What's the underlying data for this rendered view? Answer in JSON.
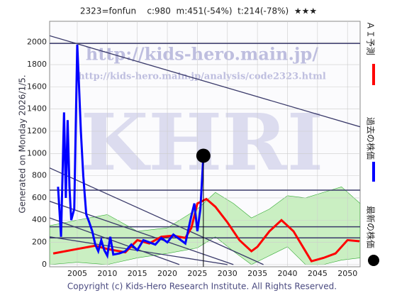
{
  "chart_data": {
    "type": "line",
    "title": "2323=fonfun    c:980  m:451(-54%)  t:214(-78%)  ★★★",
    "ylabel": "Generated on Monday 2026/1/5.",
    "watermarks": [
      "http://kids-hero.main.jp/",
      "http://kids-hero.main.jp/analysis/code2323.html",
      "KHRI"
    ],
    "footer": "Copyright (c) Kids-Hero Research Institute. All Rights Reserved.",
    "xlim": [
      2000.4,
      2052.1
    ],
    "ylim": [
      -20,
      2190
    ],
    "xticks": [
      2005,
      2010,
      2015,
      2020,
      2025,
      2030,
      2035,
      2040,
      2045,
      2050
    ],
    "yticks": [
      0,
      200,
      400,
      600,
      800,
      1000,
      1200,
      1400,
      1600,
      1800,
      2000
    ],
    "grid": true,
    "band": {
      "color": "#8fe07a",
      "x": [
        2000.4,
        2005,
        2010,
        2015,
        2020,
        2025,
        2028,
        2031,
        2034,
        2037,
        2040,
        2043,
        2046,
        2049,
        2052.1
      ],
      "lower": [
        0,
        20,
        0,
        60,
        100,
        150,
        250,
        120,
        0,
        80,
        160,
        0,
        0,
        40,
        60
      ],
      "upper": [
        350,
        400,
        450,
        300,
        330,
        500,
        650,
        550,
        420,
        500,
        620,
        600,
        650,
        700,
        550
      ]
    },
    "levels": [
      1990,
      670,
      340,
      240
    ],
    "trend_lines": [
      [
        2000.4,
        2060,
        2052.1,
        1240
      ],
      [
        2000.4,
        870,
        2036,
        0
      ],
      [
        2000.4,
        570,
        2031,
        0
      ],
      [
        2000.4,
        420,
        2022,
        0
      ],
      [
        2000.4,
        250,
        2030,
        0
      ]
    ],
    "series": [
      {
        "name": "ＡＩ予測",
        "color": "#ff0000",
        "x": [
          2001,
          2005,
          2008,
          2010,
          2013,
          2015,
          2017,
          2019,
          2021,
          2023,
          2024,
          2025,
          2026.5,
          2028,
          2030,
          2032,
          2034,
          2035,
          2037,
          2039,
          2041,
          2043,
          2044,
          2046,
          2048,
          2050,
          2052
        ],
        "values": [
          100,
          140,
          170,
          140,
          110,
          220,
          190,
          250,
          260,
          240,
          330,
          550,
          590,
          520,
          380,
          220,
          120,
          160,
          300,
          400,
          300,
          120,
          30,
          60,
          100,
          220,
          210
        ]
      },
      {
        "name": "過去の株価",
        "color": "#0000ff",
        "x": [
          2001.8,
          2002.3,
          2002.8,
          2003.1,
          2003.4,
          2003.7,
          2004,
          2004.5,
          2005,
          2005.3,
          2005.6,
          2006,
          2006.5,
          2007,
          2007.5,
          2008,
          2008.5,
          2009,
          2009.5,
          2010,
          2010.5,
          2011,
          2012,
          2013,
          2014,
          2015,
          2016,
          2017,
          2018,
          2019,
          2020,
          2021,
          2022,
          2023,
          2024,
          2024.5,
          2025,
          2025.5,
          2026
        ],
        "values": [
          700,
          250,
          1370,
          600,
          1300,
          700,
          400,
          500,
          1980,
          1600,
          1200,
          800,
          450,
          380,
          300,
          180,
          120,
          220,
          130,
          80,
          250,
          90,
          100,
          120,
          180,
          130,
          220,
          200,
          180,
          240,
          200,
          270,
          230,
          190,
          440,
          550,
          300,
          500,
          980
        ]
      },
      {
        "name": "最新の株価",
        "color": "#000000",
        "x": [
          2026
        ],
        "values": [
          980
        ]
      }
    ]
  }
}
